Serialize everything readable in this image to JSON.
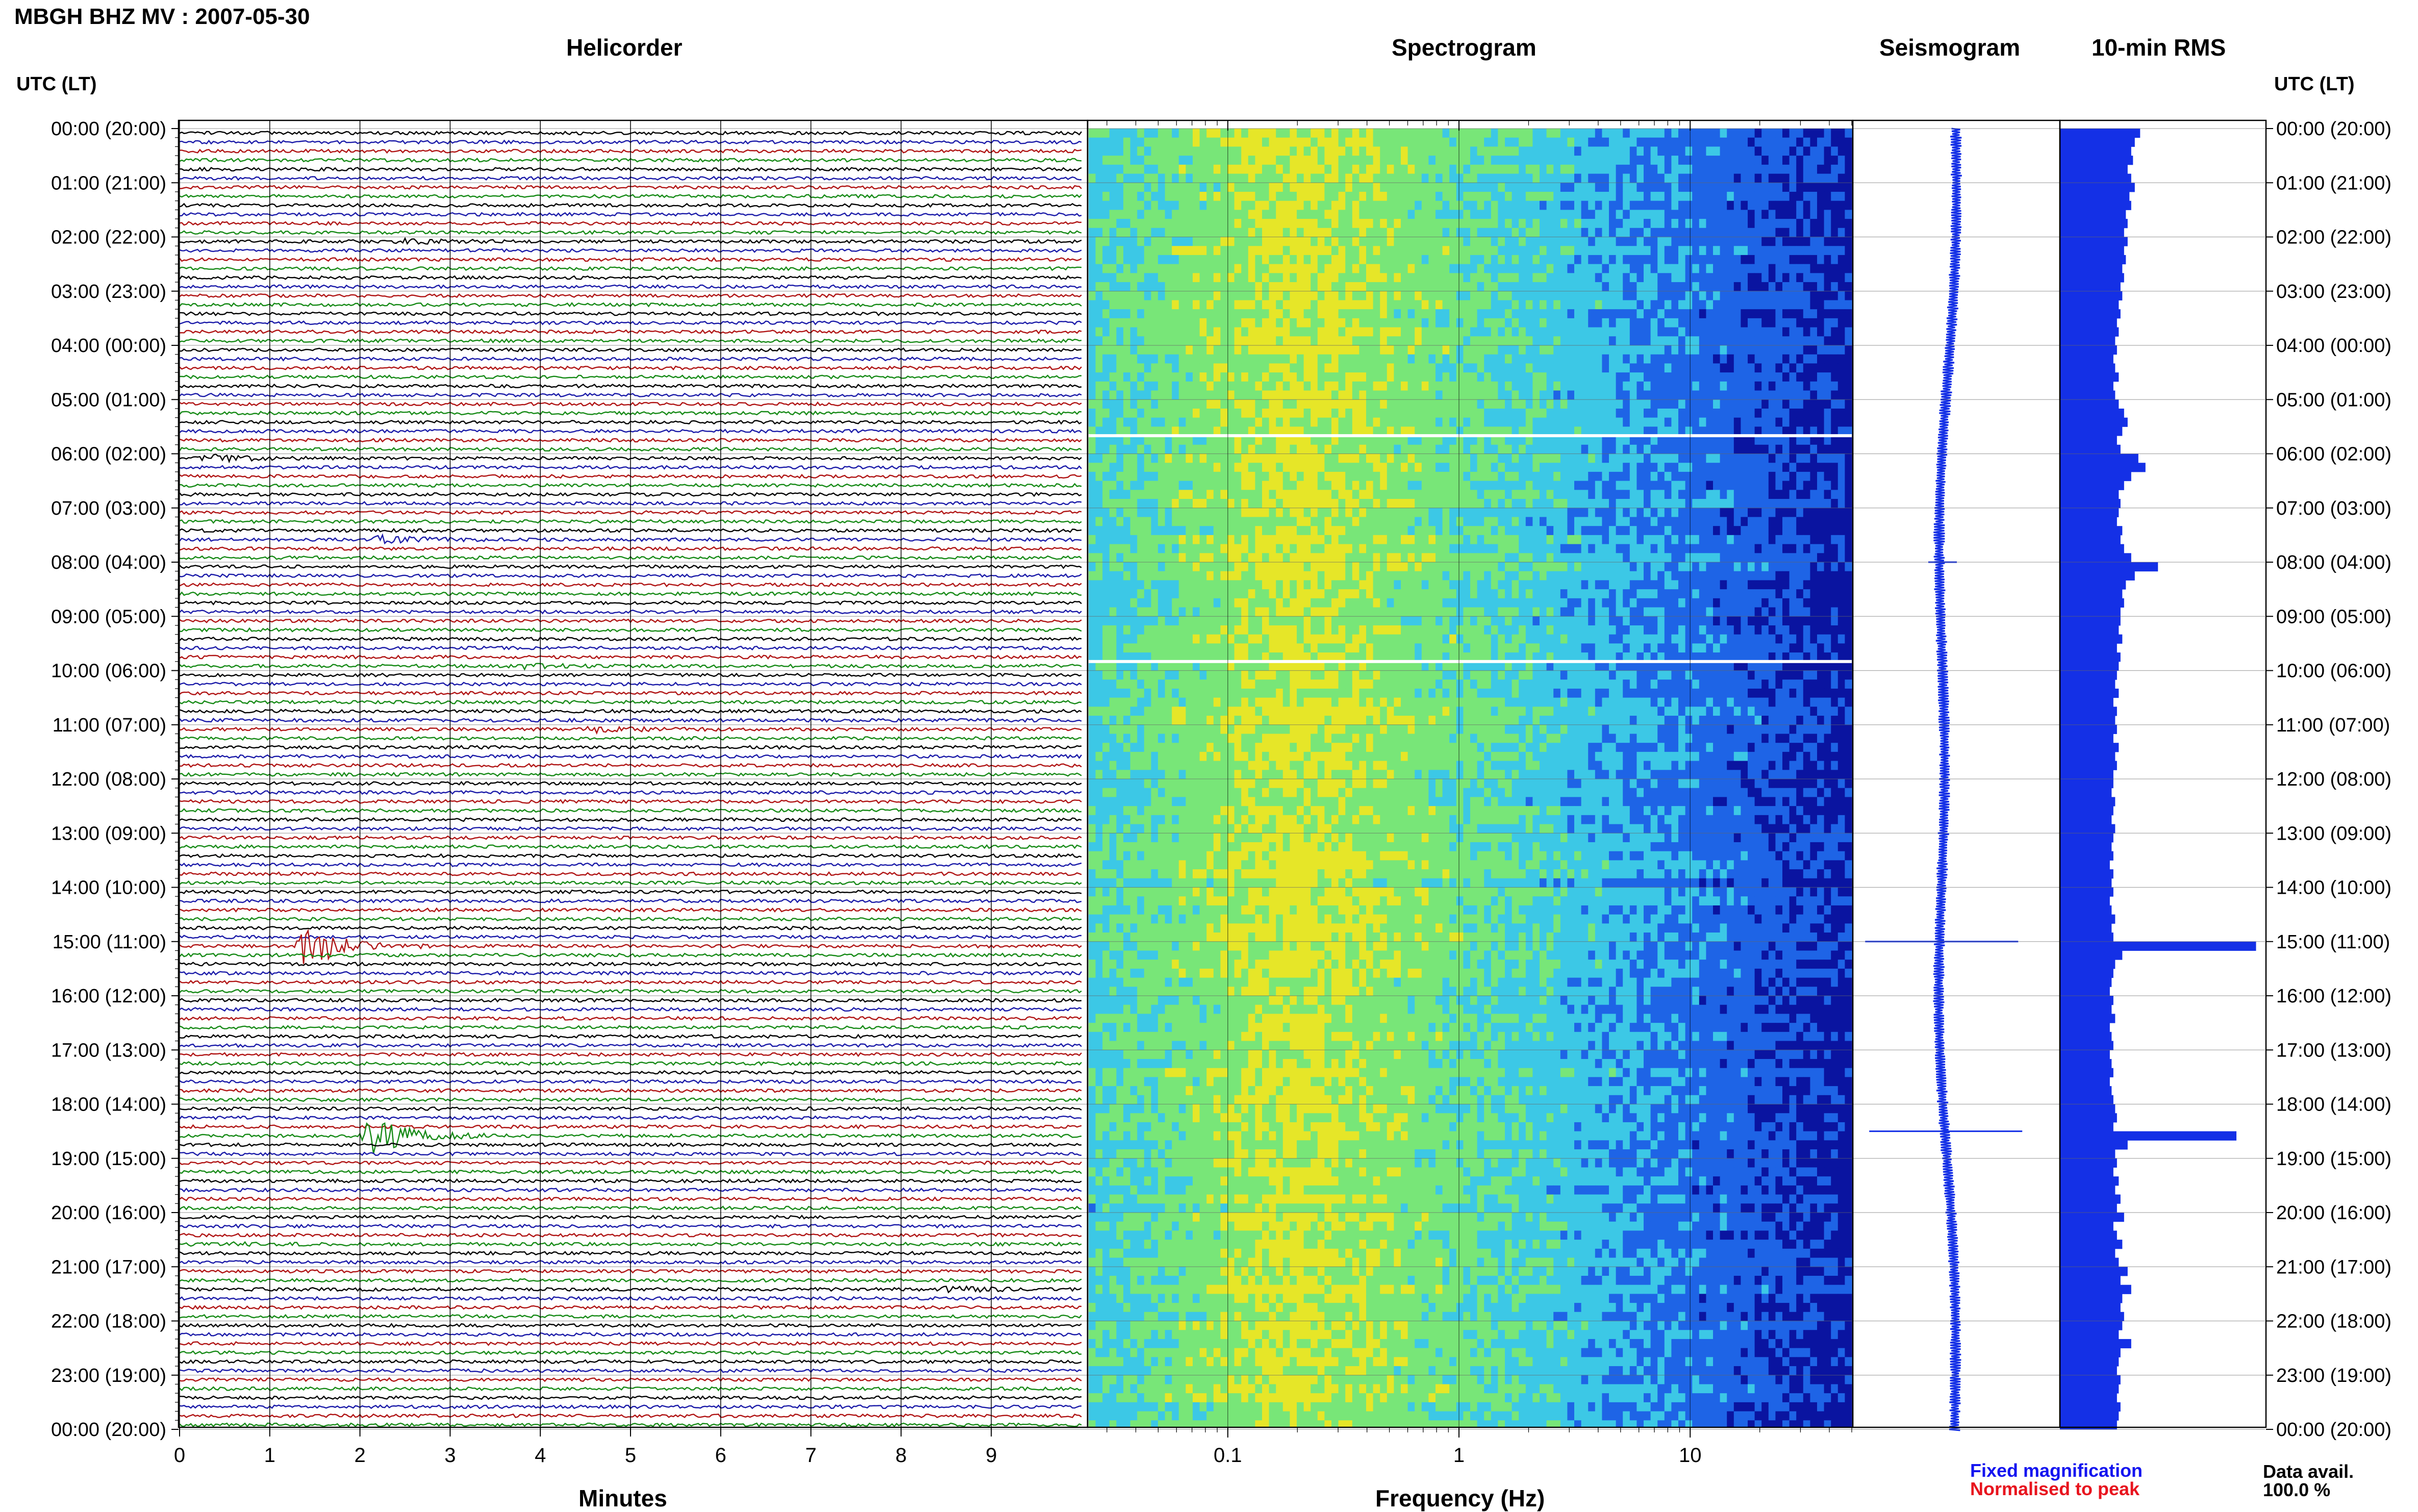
{
  "header": {
    "station": "MBGH BHZ MV : 2007-05-30"
  },
  "panels": {
    "helicorder": "Helicorder",
    "spectrogram": "Spectrogram",
    "seismogram": "Seismogram",
    "rms": "10-min RMS"
  },
  "axes": {
    "utc_label": "UTC (LT)",
    "minutes_label": "Minutes",
    "frequency_label": "Frequency (Hz)"
  },
  "legend": {
    "fixed": "Fixed magnification",
    "normalised": "Normalised to peak",
    "fixed_color": "#1414f0",
    "normalised_color": "#e8141e"
  },
  "availability": {
    "label": "Data avail.",
    "value": "100.0 %"
  },
  "colors": {
    "trace_cycle": [
      "#000000",
      "#1a1aa8",
      "#b01414",
      "#168a16"
    ],
    "seismogram": "#1430e6",
    "rms_bar": "#1430e6",
    "spectrogram_gap": "#ffffff"
  },
  "chart_data": [
    {
      "type": "line",
      "title": "Helicorder",
      "xlabel": "Minutes",
      "ylabel": "UTC (LT)",
      "xlim": [
        0,
        10
      ],
      "x_ticks": [
        "0",
        "1",
        "2",
        "3",
        "4",
        "5",
        "6",
        "7",
        "8",
        "9"
      ],
      "y_ticks": [
        "00:00 (20:00)",
        "01:00 (21:00)",
        "02:00 (22:00)",
        "03:00 (23:00)",
        "04:00 (00:00)",
        "05:00 (01:00)",
        "06:00 (02:00)",
        "07:00 (03:00)",
        "08:00 (04:00)",
        "09:00 (05:00)",
        "10:00 (06:00)",
        "11:00 (07:00)",
        "12:00 (08:00)",
        "13:00 (09:00)",
        "14:00 (10:00)",
        "15:00 (11:00)",
        "16:00 (12:00)",
        "17:00 (13:00)",
        "18:00 (14:00)",
        "19:00 (15:00)",
        "20:00 (16:00)",
        "21:00 (17:00)",
        "22:00 (18:00)",
        "23:00 (19:00)",
        "00:00 (20:00)"
      ],
      "rows": 144,
      "minutes_per_row": 10,
      "events": [
        {
          "utc": "02:00",
          "minute": 2.5,
          "amplitude": 0.3
        },
        {
          "utc": "06:00",
          "minute": 0.3,
          "amplitude": 0.5
        },
        {
          "utc": "07:30",
          "minute": 2.2,
          "amplitude": 0.5
        },
        {
          "utc": "09:50",
          "minute": 3.7,
          "amplitude": 0.4
        },
        {
          "utc": "11:00",
          "minute": 4.6,
          "amplitude": 0.4
        },
        {
          "utc": "15:00",
          "minute": 1.4,
          "amplitude": 3.0
        },
        {
          "utc": "18:30",
          "minute": 2.1,
          "amplitude": 3.0
        },
        {
          "utc": "20:30",
          "minute": 0.2,
          "amplitude": 0.3
        },
        {
          "utc": "21:20",
          "minute": 8.5,
          "amplitude": 0.4
        }
      ]
    },
    {
      "type": "heatmap",
      "title": "Spectrogram",
      "xlabel": "Frequency (Hz)",
      "x_scale": "log",
      "xlim": [
        0.025,
        50
      ],
      "x_ticks": [
        "0.1",
        "1",
        "10"
      ],
      "y_range_utc": [
        "00:00",
        "24:00"
      ],
      "data_gaps_utc": [
        "05:40",
        "09:50"
      ],
      "colormap": [
        "#0a14a0",
        "#1e64e6",
        "#3cc8e6",
        "#78e678",
        "#e6e628"
      ],
      "noise_peak_hz": 0.2
    },
    {
      "type": "line",
      "title": "Seismogram",
      "spikes_utc": [
        "08:00",
        "15:00",
        "18:30"
      ]
    },
    {
      "type": "bar",
      "title": "10-min RMS",
      "categories": [
        "00:00",
        "00:10",
        "00:20",
        "00:30",
        "00:40",
        "00:50",
        "01:00",
        "01:10",
        "01:20",
        "01:30",
        "01:40",
        "01:50",
        "02:00",
        "02:10",
        "02:20",
        "02:30",
        "02:40",
        "02:50",
        "03:00",
        "03:10",
        "03:20",
        "03:30",
        "03:40",
        "03:50",
        "04:00",
        "04:10",
        "04:20",
        "04:30",
        "04:40",
        "04:50",
        "05:00",
        "05:10",
        "05:20",
        "05:30",
        "05:40",
        "05:50",
        "06:00",
        "06:10",
        "06:20",
        "06:30",
        "06:40",
        "06:50",
        "07:00",
        "07:10",
        "07:20",
        "07:30",
        "07:40",
        "07:50",
        "08:00",
        "08:10",
        "08:20",
        "08:30",
        "08:40",
        "08:50",
        "09:00",
        "09:10",
        "09:20",
        "09:30",
        "09:40",
        "09:50",
        "10:00",
        "10:10",
        "10:20",
        "10:30",
        "10:40",
        "10:50",
        "11:00",
        "11:10",
        "11:20",
        "11:30",
        "11:40",
        "11:50",
        "12:00",
        "12:10",
        "12:20",
        "12:30",
        "12:40",
        "12:50",
        "13:00",
        "13:10",
        "13:20",
        "13:30",
        "13:40",
        "13:50",
        "14:00",
        "14:10",
        "14:20",
        "14:30",
        "14:40",
        "14:50",
        "15:00",
        "15:10",
        "15:20",
        "15:30",
        "15:40",
        "15:50",
        "16:00",
        "16:10",
        "16:20",
        "16:30",
        "16:40",
        "16:50",
        "17:00",
        "17:10",
        "17:20",
        "17:30",
        "17:40",
        "17:50",
        "18:00",
        "18:10",
        "18:20",
        "18:30",
        "18:40",
        "18:50",
        "19:00",
        "19:10",
        "19:20",
        "19:30",
        "19:40",
        "19:50",
        "20:00",
        "20:10",
        "20:20",
        "20:30",
        "20:40",
        "20:50",
        "21:00",
        "21:10",
        "21:20",
        "21:30",
        "21:40",
        "21:50",
        "22:00",
        "22:10",
        "22:20",
        "22:30",
        "22:40",
        "22:50",
        "23:00",
        "23:10",
        "23:20",
        "23:30",
        "23:40",
        "23:50"
      ],
      "values": [
        0.45,
        0.42,
        0.4,
        0.41,
        0.38,
        0.4,
        0.42,
        0.39,
        0.4,
        0.37,
        0.38,
        0.36,
        0.38,
        0.36,
        0.37,
        0.35,
        0.36,
        0.34,
        0.35,
        0.33,
        0.34,
        0.32,
        0.33,
        0.31,
        0.32,
        0.3,
        0.31,
        0.33,
        0.3,
        0.31,
        0.33,
        0.36,
        0.38,
        0.35,
        0.32,
        0.34,
        0.44,
        0.48,
        0.4,
        0.36,
        0.33,
        0.34,
        0.33,
        0.32,
        0.35,
        0.34,
        0.36,
        0.4,
        0.55,
        0.42,
        0.37,
        0.35,
        0.36,
        0.34,
        0.34,
        0.33,
        0.35,
        0.32,
        0.34,
        0.33,
        0.32,
        0.31,
        0.33,
        0.3,
        0.32,
        0.31,
        0.32,
        0.3,
        0.33,
        0.31,
        0.32,
        0.3,
        0.3,
        0.29,
        0.31,
        0.3,
        0.29,
        0.31,
        0.3,
        0.29,
        0.3,
        0.28,
        0.3,
        0.29,
        0.3,
        0.28,
        0.29,
        0.31,
        0.29,
        0.3,
        1.1,
        0.35,
        0.31,
        0.3,
        0.29,
        0.28,
        0.3,
        0.29,
        0.31,
        0.28,
        0.29,
        0.3,
        0.28,
        0.29,
        0.3,
        0.28,
        0.29,
        0.3,
        0.31,
        0.32,
        0.3,
        0.99,
        0.38,
        0.31,
        0.32,
        0.3,
        0.33,
        0.31,
        0.34,
        0.32,
        0.36,
        0.3,
        0.32,
        0.35,
        0.31,
        0.33,
        0.38,
        0.34,
        0.4,
        0.35,
        0.34,
        0.36,
        0.35,
        0.33,
        0.4,
        0.34,
        0.33,
        0.32,
        0.34,
        0.33,
        0.32,
        0.34,
        0.33,
        0.32
      ],
      "xlim": [
        0,
        1.15
      ]
    }
  ]
}
